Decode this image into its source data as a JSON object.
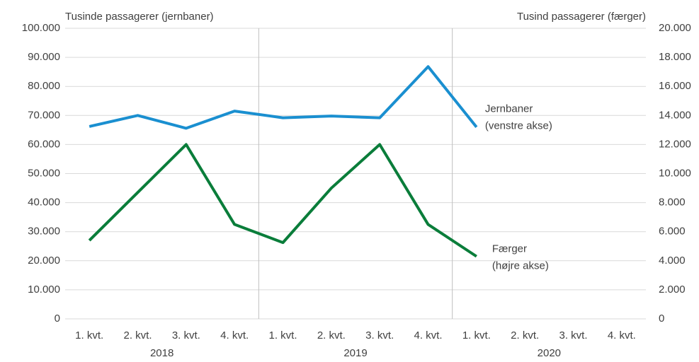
{
  "chart_data": {
    "type": "line",
    "ylabel": "Tusinde passagerer (jernbaner)",
    "y2label": "Tusind passagerer (færger)",
    "categories": [
      "1. kvt.",
      "2. kvt.",
      "3. kvt.",
      "4. kvt.",
      "1. kvt.",
      "2. kvt.",
      "3. kvt.",
      "4. kvt.",
      "1. kvt.",
      "2. kvt.",
      "3. kvt.",
      "4. kvt."
    ],
    "years": [
      "2018",
      "2019",
      "2020"
    ],
    "series": [
      {
        "name": "Jernbaner",
        "note": "(venstre akse)",
        "color": "#1a8fd0",
        "values": [
          66200,
          70000,
          65600,
          71500,
          69200,
          69800,
          69200,
          86800,
          66000,
          null,
          null,
          null
        ]
      },
      {
        "name": "Færger",
        "note": "(højre akse)",
        "color": "#0a7d3a",
        "axis": "y2",
        "values": [
          5400,
          8700,
          12000,
          6500,
          5250,
          9000,
          12000,
          6500,
          4300,
          null,
          null,
          null
        ]
      }
    ],
    "ylim": [
      0,
      100000
    ],
    "yticks": [
      0,
      {
        "value": 10000,
        "label": "10.000"
      },
      {
        "value": 20000,
        "label": "20.000"
      },
      {
        "value": 30000,
        "label": "30.000"
      },
      {
        "value": 40000,
        "label": "40.000"
      },
      {
        "value": 50000,
        "label": "50.000"
      },
      {
        "value": 60000,
        "label": "60.000"
      },
      {
        "value": 70000,
        "label": "70.000"
      },
      {
        "value": 80000,
        "label": "80.000"
      },
      {
        "value": 90000,
        "label": "90.000"
      },
      {
        "value": 100000,
        "label": "100.000"
      }
    ],
    "y2lim": [
      0,
      20000
    ],
    "y2ticks": [
      0,
      {
        "value": 2000,
        "label": "2.000"
      },
      {
        "value": 4000,
        "label": "4.000"
      },
      {
        "value": 6000,
        "label": "6.000"
      },
      {
        "value": 8000,
        "label": "8.000"
      },
      {
        "value": 10000,
        "label": "10.000"
      },
      {
        "value": 12000,
        "label": "12.000"
      },
      {
        "value": 14000,
        "label": "14.000"
      },
      {
        "value": 16000,
        "label": "16.000"
      },
      {
        "value": 18000,
        "label": "18.000"
      },
      {
        "value": 20000,
        "label": "20.000"
      }
    ],
    "grid": true
  }
}
